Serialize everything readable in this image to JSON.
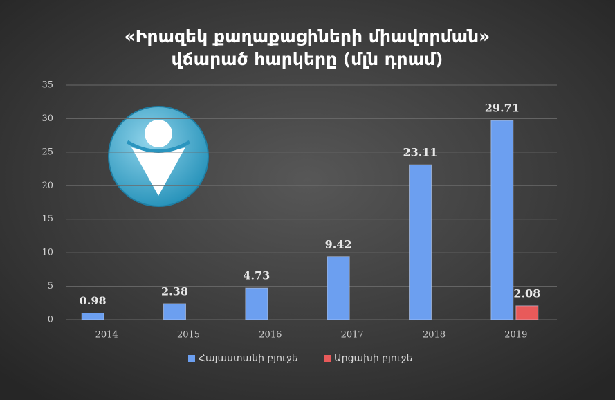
{
  "chart_data": {
    "type": "bar",
    "title": [
      "«Իրազեկ քաղաքացիների միավորման»",
      "վճարած հարկերը (մլն դրամ)"
    ],
    "categories": [
      "2014",
      "2015",
      "2016",
      "2017",
      "2018",
      "2019"
    ],
    "series": [
      {
        "name": "Հայաստանի բյուջե",
        "color": "#6c9ff0",
        "values": [
          0.98,
          2.38,
          4.73,
          9.42,
          23.11,
          29.71
        ]
      },
      {
        "name": "Արցախի բյուջե",
        "color": "#e85a5a",
        "values": [
          null,
          null,
          null,
          null,
          null,
          2.08
        ]
      }
    ],
    "ylim": [
      0,
      35
    ],
    "yticks": [
      0,
      5,
      10,
      15,
      20,
      25,
      30,
      35
    ],
    "grid": true,
    "legend": "bottom"
  }
}
